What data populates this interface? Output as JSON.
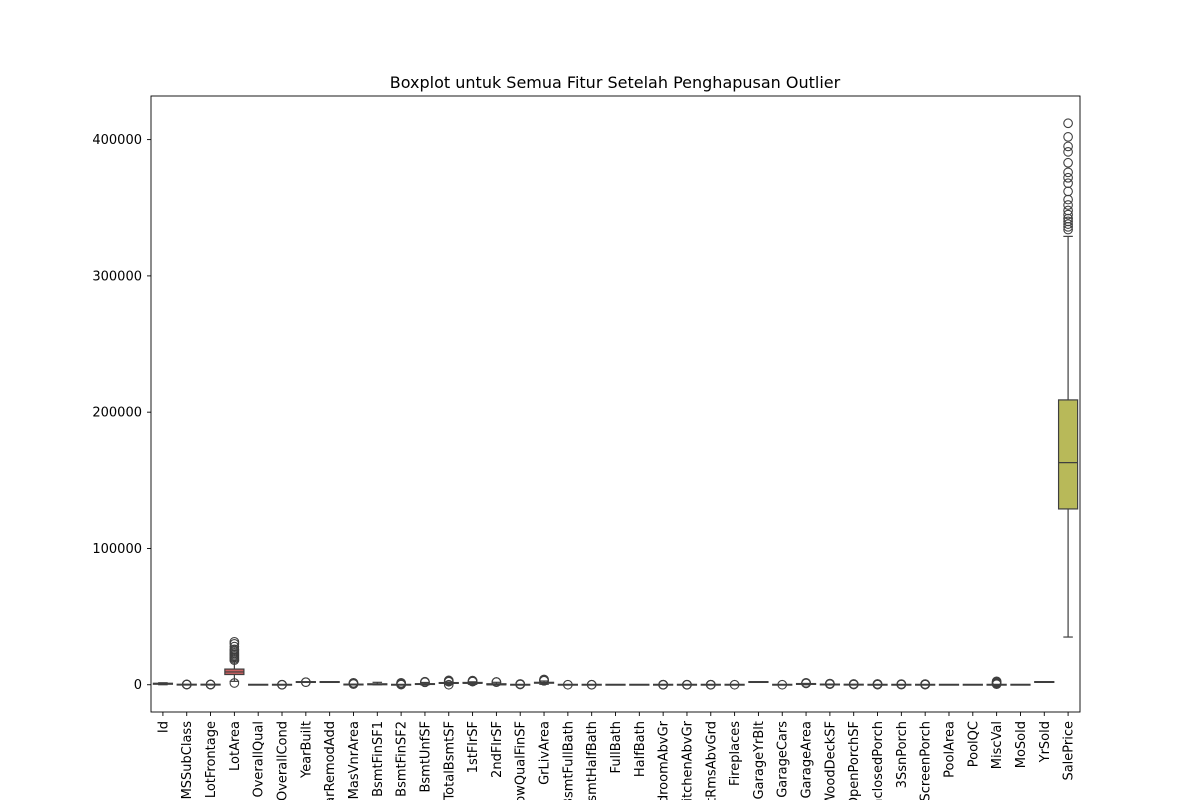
{
  "chart_data": {
    "type": "boxplot",
    "title": "Boxplot untuk Semua Fitur Setelah Penghapusan Outlier",
    "xlabel": "",
    "ylabel": "",
    "ylim": [
      -20000,
      432000
    ],
    "yticks": [
      0,
      100000,
      200000,
      300000,
      400000
    ],
    "yticklabels": [
      "0",
      "100000",
      "200000",
      "300000",
      "400000"
    ],
    "grid": false,
    "categories": [
      "Id",
      "MSSubClass",
      "LotFrontage",
      "LotArea",
      "OverallQual",
      "OverallCond",
      "YearBuilt",
      "YearRemodAdd",
      "MasVnrArea",
      "BsmtFinSF1",
      "BsmtFinSF2",
      "BsmtUnfSF",
      "TotalBsmtSF",
      "1stFlrSF",
      "2ndFlrSF",
      "LowQualFinSF",
      "GrLivArea",
      "BsmtFullBath",
      "BsmtHalfBath",
      "FullBath",
      "HalfBath",
      "BedroomAbvGr",
      "KitchenAbvGr",
      "TotRmsAbvGrd",
      "Fireplaces",
      "GarageYrBlt",
      "GarageCars",
      "GarageArea",
      "WoodDeckSF",
      "OpenPorchSF",
      "EnclosedPorch",
      "3SsnPorch",
      "ScreenPorch",
      "PoolArea",
      "PoolQC",
      "MiscVal",
      "MoSold",
      "YrSold",
      "SalePrice"
    ],
    "colors": [
      "#3274a1",
      "#e1812c",
      "#3a923a",
      "#c03d3e",
      "#9372b2",
      "#845b53",
      "#d684bd",
      "#7f7f7f",
      "#a9aa35",
      "#2ebdcc"
    ],
    "series": [
      {
        "min": 1,
        "q1": 365,
        "median": 730,
        "q3": 1095,
        "max": 1460,
        "outliers": []
      },
      {
        "min": 20,
        "q1": 20,
        "median": 50,
        "q3": 70,
        "max": 145,
        "outliers": [
          160,
          180,
          190
        ]
      },
      {
        "min": 21,
        "q1": 60,
        "median": 69,
        "q3": 80,
        "max": 110,
        "outliers": [
          120,
          140,
          160,
          182
        ]
      },
      {
        "min": 2500,
        "q1": 7500,
        "median": 9400,
        "q3": 11500,
        "max": 17500,
        "outliers": [
          1300,
          18000,
          19000,
          20000,
          21000,
          22000,
          23000,
          24000,
          25000,
          26000,
          28000,
          30000,
          31500
        ]
      },
      {
        "min": 2,
        "q1": 5,
        "median": 6,
        "q3": 7,
        "max": 10,
        "outliers": []
      },
      {
        "min": 3,
        "q1": 5,
        "median": 5,
        "q3": 6,
        "max": 8,
        "outliers": [
          1,
          2,
          9
        ]
      },
      {
        "min": 1890,
        "q1": 1954,
        "median": 1973,
        "q3": 2000,
        "max": 2010,
        "outliers": [
          1872,
          1880
        ]
      },
      {
        "min": 1950,
        "q1": 1967,
        "median": 1994,
        "q3": 2004,
        "max": 2010,
        "outliers": []
      },
      {
        "min": 0,
        "q1": 0,
        "median": 0,
        "q3": 160,
        "max": 400,
        "outliers": [
          500,
          700,
          900,
          1100,
          1400
        ]
      },
      {
        "min": 0,
        "q1": 0,
        "median": 380,
        "q3": 710,
        "max": 1780,
        "outliers": []
      },
      {
        "min": 0,
        "q1": 0,
        "median": 0,
        "q3": 0,
        "max": 0,
        "outliers": [
          100,
          300,
          500,
          800,
          1100,
          1400
        ]
      },
      {
        "min": 0,
        "q1": 220,
        "median": 480,
        "q3": 810,
        "max": 1680,
        "outliers": [
          1800,
          2000,
          2200
        ]
      },
      {
        "min": 100,
        "q1": 800,
        "median": 990,
        "q3": 1300,
        "max": 2050,
        "outliers": [
          0,
          2200,
          2400,
          2600,
          2900,
          3200
        ]
      },
      {
        "min": 334,
        "q1": 880,
        "median": 1090,
        "q3": 1390,
        "max": 2150,
        "outliers": [
          2300,
          2500,
          2700,
          3000
        ]
      },
      {
        "min": 0,
        "q1": 0,
        "median": 0,
        "q3": 730,
        "max": 1800,
        "outliers": [
          1900,
          2000
        ]
      },
      {
        "min": 0,
        "q1": 0,
        "median": 0,
        "q3": 0,
        "max": 0,
        "outliers": [
          200,
          400,
          572
        ]
      },
      {
        "min": 334,
        "q1": 1130,
        "median": 1460,
        "q3": 1780,
        "max": 2750,
        "outliers": [
          2900,
          3100,
          3400,
          3600,
          3900
        ]
      },
      {
        "min": 0,
        "q1": 0,
        "median": 0,
        "q3": 1,
        "max": 2,
        "outliers": [
          3
        ]
      },
      {
        "min": 0,
        "q1": 0,
        "median": 0,
        "q3": 0,
        "max": 0,
        "outliers": [
          1,
          2
        ]
      },
      {
        "min": 0,
        "q1": 1,
        "median": 2,
        "q3": 2,
        "max": 3,
        "outliers": []
      },
      {
        "min": 0,
        "q1": 0,
        "median": 0,
        "q3": 1,
        "max": 2,
        "outliers": []
      },
      {
        "min": 1,
        "q1": 2,
        "median": 3,
        "q3": 3,
        "max": 4,
        "outliers": [
          0,
          5,
          6,
          8
        ]
      },
      {
        "min": 1,
        "q1": 1,
        "median": 1,
        "q3": 1,
        "max": 1,
        "outliers": [
          0,
          2,
          3
        ]
      },
      {
        "min": 3,
        "q1": 5,
        "median": 6,
        "q3": 7,
        "max": 10,
        "outliers": [
          11,
          12,
          14
        ]
      },
      {
        "min": 0,
        "q1": 0,
        "median": 1,
        "q3": 1,
        "max": 2,
        "outliers": [
          3
        ]
      },
      {
        "min": 1900,
        "q1": 1961,
        "median": 1980,
        "q3": 2002,
        "max": 2010,
        "outliers": []
      },
      {
        "min": 0,
        "q1": 1,
        "median": 2,
        "q3": 2,
        "max": 3,
        "outliers": [
          4
        ]
      },
      {
        "min": 0,
        "q1": 334,
        "median": 480,
        "q3": 576,
        "max": 938,
        "outliers": [
          1000,
          1100,
          1250,
          1418
        ]
      },
      {
        "min": 0,
        "q1": 0,
        "median": 0,
        "q3": 168,
        "max": 420,
        "outliers": [
          450,
          500,
          600,
          700,
          857
        ]
      },
      {
        "min": 0,
        "q1": 0,
        "median": 25,
        "q3": 68,
        "max": 170,
        "outliers": [
          200,
          300,
          400,
          547
        ]
      },
      {
        "min": 0,
        "q1": 0,
        "median": 0,
        "q3": 0,
        "max": 0,
        "outliers": [
          100,
          200,
          300,
          400,
          552
        ]
      },
      {
        "min": 0,
        "q1": 0,
        "median": 0,
        "q3": 0,
        "max": 0,
        "outliers": [
          150,
          250,
          300,
          508
        ]
      },
      {
        "min": 0,
        "q1": 0,
        "median": 0,
        "q3": 0,
        "max": 0,
        "outliers": [
          100,
          200,
          300,
          400,
          480
        ]
      },
      {
        "min": 0,
        "q1": 0,
        "median": 0,
        "q3": 0,
        "max": 0,
        "outliers": []
      },
      {
        "min": 0,
        "q1": 0,
        "median": 0,
        "q3": 0,
        "max": 0,
        "outliers": []
      },
      {
        "min": 0,
        "q1": 0,
        "median": 0,
        "q3": 0,
        "max": 0,
        "outliers": [
          400,
          700,
          1000,
          1500,
          2000,
          2500
        ]
      },
      {
        "min": 1,
        "q1": 5,
        "median": 6,
        "q3": 8,
        "max": 12,
        "outliers": []
      },
      {
        "min": 2006,
        "q1": 2007,
        "median": 2008,
        "q3": 2009,
        "max": 2010,
        "outliers": []
      },
      {
        "min": 35000,
        "q1": 129000,
        "median": 163000,
        "q3": 209000,
        "max": 329000,
        "outliers": [
          334000,
          336000,
          338000,
          340000,
          342000,
          345000,
          348000,
          352000,
          356000,
          362000,
          368000,
          372000,
          376000,
          383000,
          391000,
          395000,
          402000,
          412000
        ]
      }
    ]
  }
}
